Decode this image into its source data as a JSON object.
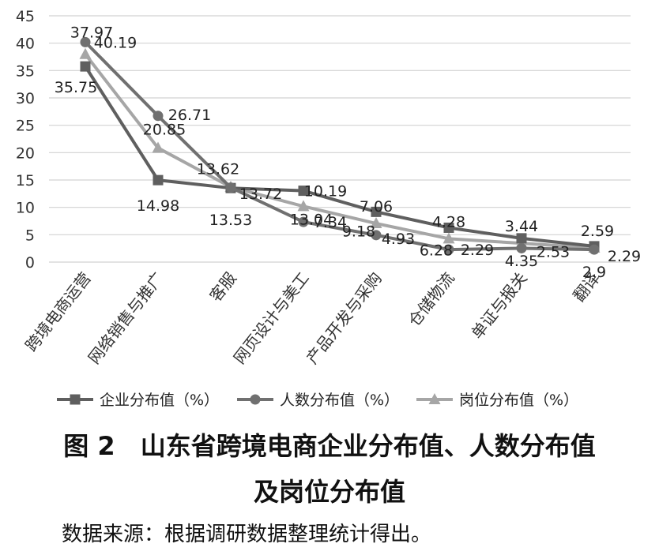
{
  "chart_data": {
    "type": "line",
    "categories": [
      "跨境电商运营",
      "网络销售与推广",
      "客服",
      "网页设计与美工",
      "产品开发与采购",
      "仓储物流",
      "单证与报关",
      "翻译"
    ],
    "ylim": [
      0,
      45
    ],
    "yticks": [
      0,
      5,
      10,
      15,
      20,
      25,
      30,
      35,
      40,
      45
    ],
    "grid": true,
    "legend_position": "bottom",
    "series": [
      {
        "name": "企业分布值（%）",
        "marker": "square",
        "color": "#5f5f5f",
        "values": [
          35.75,
          14.98,
          13.53,
          13.04,
          9.18,
          6.28,
          4.35,
          2.9
        ],
        "labels": [
          "35.75",
          "14.98",
          "13.53",
          "13.04",
          "9.18",
          "6.28",
          "4.35",
          "2.9"
        ]
      },
      {
        "name": "人数分布值（%）",
        "marker": "circle",
        "color": "#707070",
        "values": [
          40.19,
          26.71,
          13.62,
          7.34,
          4.93,
          2.29,
          2.53,
          2.29
        ],
        "labels": [
          "40.19",
          "26.71",
          "13.62",
          "7.34",
          "4.93",
          "2.29",
          "2.53",
          "2.29"
        ]
      },
      {
        "name": "岗位分布值（%）",
        "marker": "triangle",
        "color": "#a6a6a6",
        "values": [
          37.97,
          20.85,
          13.72,
          10.19,
          7.06,
          4.28,
          3.44,
          2.59
        ],
        "labels": [
          "37.97",
          "20.85",
          "13.72",
          "10.19",
          "7.06",
          "4.28",
          "3.44",
          "2.59"
        ]
      }
    ]
  },
  "caption": {
    "line1": "图 2　山东省跨境电商企业分布值、人数分布值",
    "line2": "及岗位分布值"
  },
  "source_note": "数据来源：根据调研数据整理统计得出。"
}
